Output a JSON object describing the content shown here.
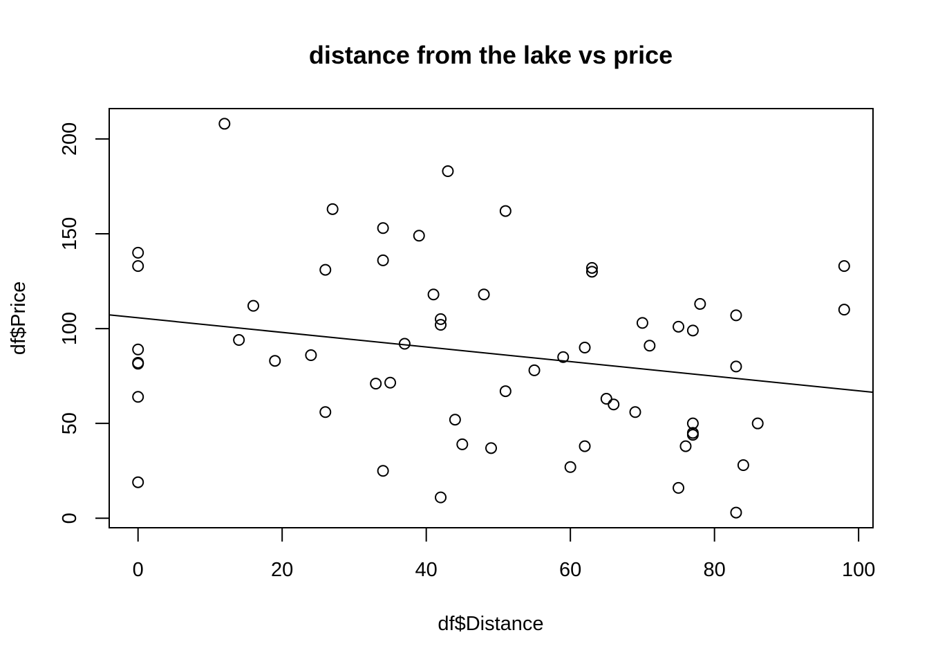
{
  "chart_data": {
    "type": "scatter",
    "title": "distance from the lake vs price",
    "xlabel": "df$Distance",
    "ylabel": "df$Price",
    "xlim": [
      -4,
      102
    ],
    "ylim": [
      -5,
      216
    ],
    "xticks": [
      0,
      20,
      40,
      60,
      80,
      100
    ],
    "yticks": [
      0,
      50,
      100,
      150,
      200
    ],
    "xtick_labels": [
      "0",
      "20",
      "40",
      "60",
      "80",
      "100"
    ],
    "ytick_labels": [
      "0",
      "50",
      "100",
      "150",
      "200"
    ],
    "grid": false,
    "marker": "open-circle",
    "color": "#000000",
    "points": [
      {
        "x": 0,
        "y": 140
      },
      {
        "x": 0,
        "y": 133
      },
      {
        "x": 0,
        "y": 89
      },
      {
        "x": 0,
        "y": 82
      },
      {
        "x": 0,
        "y": 81.5
      },
      {
        "x": 0,
        "y": 64
      },
      {
        "x": 0,
        "y": 19
      },
      {
        "x": 12,
        "y": 208
      },
      {
        "x": 14,
        "y": 94
      },
      {
        "x": 16,
        "y": 112
      },
      {
        "x": 19,
        "y": 83
      },
      {
        "x": 24,
        "y": 86
      },
      {
        "x": 26,
        "y": 131
      },
      {
        "x": 26,
        "y": 56
      },
      {
        "x": 27,
        "y": 163
      },
      {
        "x": 33,
        "y": 71
      },
      {
        "x": 34,
        "y": 153
      },
      {
        "x": 34,
        "y": 136
      },
      {
        "x": 34,
        "y": 25
      },
      {
        "x": 35,
        "y": 71.5
      },
      {
        "x": 37,
        "y": 92
      },
      {
        "x": 39,
        "y": 149
      },
      {
        "x": 41,
        "y": 118
      },
      {
        "x": 42,
        "y": 105
      },
      {
        "x": 42,
        "y": 102
      },
      {
        "x": 42,
        "y": 11
      },
      {
        "x": 43,
        "y": 183
      },
      {
        "x": 44,
        "y": 52
      },
      {
        "x": 45,
        "y": 39
      },
      {
        "x": 48,
        "y": 118
      },
      {
        "x": 49,
        "y": 37
      },
      {
        "x": 51,
        "y": 162
      },
      {
        "x": 51,
        "y": 67
      },
      {
        "x": 55,
        "y": 78
      },
      {
        "x": 59,
        "y": 85
      },
      {
        "x": 60,
        "y": 27
      },
      {
        "x": 62,
        "y": 90
      },
      {
        "x": 62,
        "y": 38
      },
      {
        "x": 63,
        "y": 132
      },
      {
        "x": 63,
        "y": 130
      },
      {
        "x": 65,
        "y": 63
      },
      {
        "x": 66,
        "y": 60
      },
      {
        "x": 69,
        "y": 56
      },
      {
        "x": 70,
        "y": 103
      },
      {
        "x": 71,
        "y": 91
      },
      {
        "x": 75,
        "y": 101
      },
      {
        "x": 75,
        "y": 16
      },
      {
        "x": 76,
        "y": 38
      },
      {
        "x": 77,
        "y": 99
      },
      {
        "x": 77,
        "y": 50
      },
      {
        "x": 77,
        "y": 45
      },
      {
        "x": 77,
        "y": 44
      },
      {
        "x": 78,
        "y": 113
      },
      {
        "x": 83,
        "y": 107
      },
      {
        "x": 83,
        "y": 80
      },
      {
        "x": 83,
        "y": 3
      },
      {
        "x": 84,
        "y": 28
      },
      {
        "x": 86,
        "y": 50
      },
      {
        "x": 98,
        "y": 133
      },
      {
        "x": 98,
        "y": 110
      }
    ],
    "regression_line": {
      "intercept": 105.7,
      "slope": -0.385
    }
  }
}
